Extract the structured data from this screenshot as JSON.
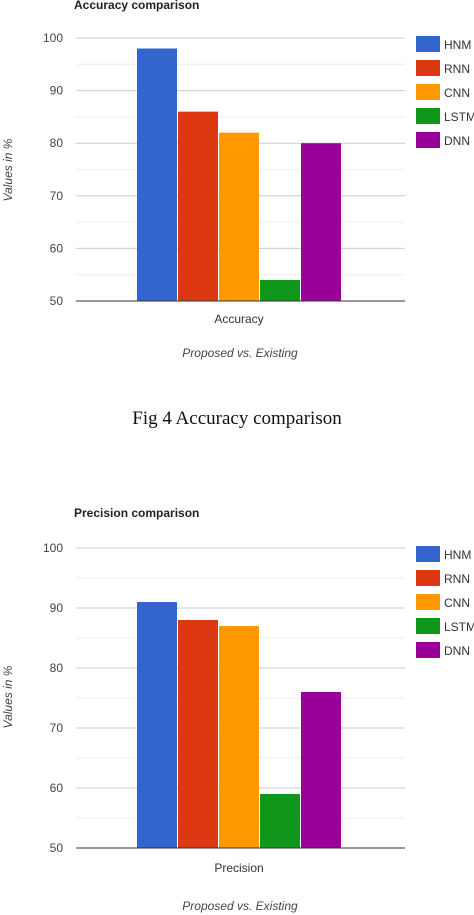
{
  "chart_data": [
    {
      "type": "bar",
      "title": "Accuracy comparison",
      "ylabel": "Values in %",
      "xlabel": "Proposed vs. Existing",
      "categories": [
        "Accuracy"
      ],
      "ylim": [
        50,
        100
      ],
      "yticks": [
        50,
        60,
        70,
        80,
        90,
        100
      ],
      "grid": true,
      "legend": "right",
      "series": [
        {
          "name": "HNM",
          "values": [
            98
          ],
          "color": "#3366cc"
        },
        {
          "name": "RNN",
          "values": [
            86
          ],
          "color": "#dc3912"
        },
        {
          "name": "CNN",
          "values": [
            82
          ],
          "color": "#ff9900"
        },
        {
          "name": "LSTM",
          "values": [
            54
          ],
          "color": "#109618"
        },
        {
          "name": "DNN",
          "values": [
            80
          ],
          "color": "#990099"
        }
      ]
    },
    {
      "type": "bar",
      "title": "Precision comparison",
      "ylabel": "Values in %",
      "xlabel": "Proposed vs. Existing",
      "categories": [
        "Precision"
      ],
      "ylim": [
        50,
        100
      ],
      "yticks": [
        50,
        60,
        70,
        80,
        90,
        100
      ],
      "grid": true,
      "legend": "right",
      "series": [
        {
          "name": "HNM",
          "values": [
            91
          ],
          "color": "#3366cc"
        },
        {
          "name": "RNN",
          "values": [
            88
          ],
          "color": "#dc3912"
        },
        {
          "name": "CNN",
          "values": [
            87
          ],
          "color": "#ff9900"
        },
        {
          "name": "LSTM",
          "values": [
            59
          ],
          "color": "#109618"
        },
        {
          "name": "DNN",
          "values": [
            76
          ],
          "color": "#990099"
        }
      ]
    }
  ],
  "figure_caption": "Fig 4 Accuracy comparison"
}
